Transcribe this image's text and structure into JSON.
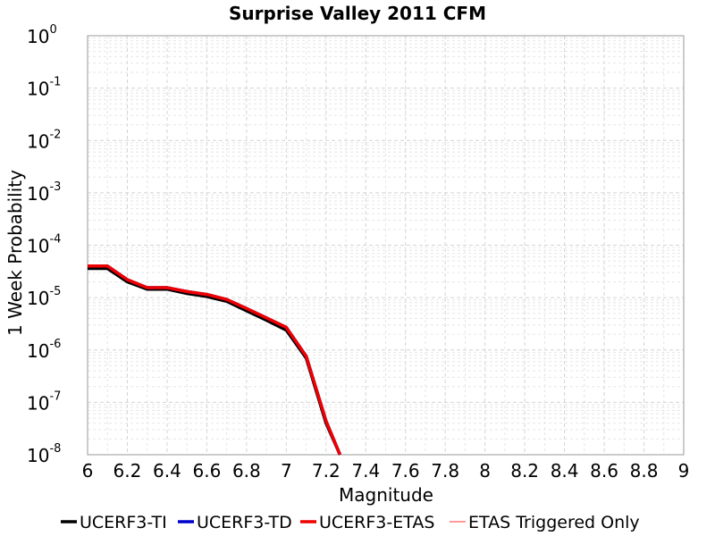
{
  "chart_data": {
    "type": "line",
    "title": "Surprise Valley 2011 CFM",
    "xlabel": "Magnitude",
    "ylabel": "1 Week Probability",
    "xlim": [
      6,
      9
    ],
    "ylim": [
      1e-08,
      1
    ],
    "yscale": "log",
    "grid": true,
    "legend_position": "bottom",
    "x_ticks": [
      "6",
      "6.2",
      "6.4",
      "6.6",
      "6.8",
      "7",
      "7.2",
      "7.4",
      "7.6",
      "7.8",
      "8",
      "8.2",
      "8.4",
      "8.6",
      "8.8",
      "9"
    ],
    "y_ticks": [
      {
        "base": "10",
        "exp": "0"
      },
      {
        "base": "10",
        "exp": "-1"
      },
      {
        "base": "10",
        "exp": "-2"
      },
      {
        "base": "10",
        "exp": "-3"
      },
      {
        "base": "10",
        "exp": "-4"
      },
      {
        "base": "10",
        "exp": "-5"
      },
      {
        "base": "10",
        "exp": "-6"
      },
      {
        "base": "10",
        "exp": "-7"
      },
      {
        "base": "10",
        "exp": "-8"
      }
    ],
    "series": [
      {
        "name": "UCERF3-TI",
        "color": "#000000",
        "x": [
          6.0,
          6.1,
          6.2,
          6.3,
          6.4,
          6.5,
          6.6,
          6.7,
          6.8,
          6.9,
          7.0,
          7.1,
          7.2,
          7.27
        ],
        "y": [
          3.6e-05,
          3.6e-05,
          2e-05,
          1.45e-05,
          1.45e-05,
          1.2e-05,
          1.05e-05,
          8.5e-06,
          5.6e-06,
          3.7e-06,
          2.4e-06,
          7e-07,
          4e-08,
          1e-08
        ]
      },
      {
        "name": "UCERF3-TD",
        "color": "#0000cc",
        "x": [
          6.0,
          6.1,
          6.2,
          6.3,
          6.4,
          6.5,
          6.6,
          6.7,
          6.8,
          6.9,
          7.0,
          7.1,
          7.2,
          7.27
        ],
        "y": [
          4e-05,
          4e-05,
          2.2e-05,
          1.55e-05,
          1.55e-05,
          1.3e-05,
          1.15e-05,
          9.2e-06,
          6.2e-06,
          4.1e-06,
          2.7e-06,
          7.6e-07,
          4.4e-08,
          1e-08
        ]
      },
      {
        "name": "UCERF3-ETAS",
        "color": "#ee0000",
        "x": [
          6.0,
          6.1,
          6.2,
          6.3,
          6.4,
          6.5,
          6.6,
          6.7,
          6.8,
          6.9,
          7.0,
          7.1,
          7.2,
          7.27
        ],
        "y": [
          4e-05,
          4e-05,
          2.2e-05,
          1.55e-05,
          1.55e-05,
          1.3e-05,
          1.15e-05,
          9.2e-06,
          6.2e-06,
          4.1e-06,
          2.7e-06,
          7.6e-07,
          4.4e-08,
          1e-08
        ]
      },
      {
        "name": "ETAS Triggered Only",
        "color": "#ff3333",
        "x": [],
        "y": []
      }
    ]
  }
}
